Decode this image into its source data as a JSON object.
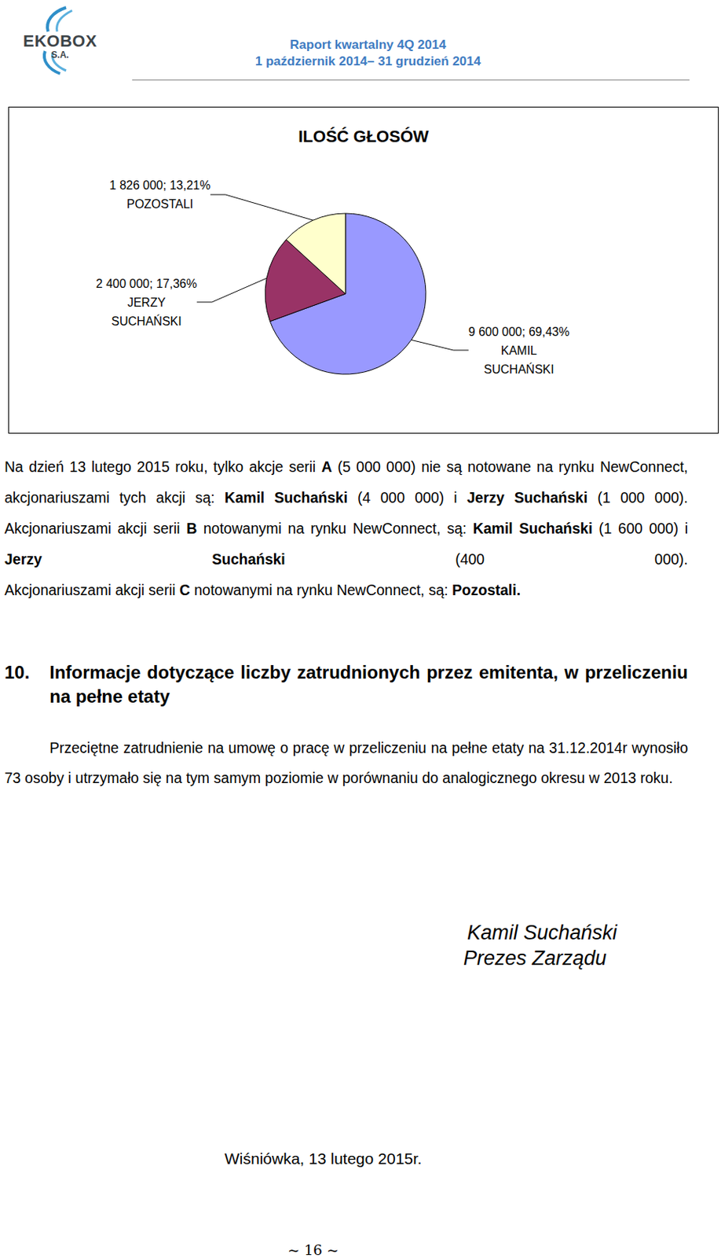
{
  "header": {
    "logo": {
      "name": "EKOBOX",
      "suffix": "S.A."
    },
    "title": "Raport kwartalny 4Q 2014",
    "period": "1 październik 2014– 31 grudzień 2014"
  },
  "chart_data": {
    "type": "pie",
    "title": "ILOŚĆ GŁOSÓW",
    "categories": [
      "KAMIL SUCHAŃSKI",
      "JERZY SUCHAŃSKI",
      "POZOSTALI"
    ],
    "values": [
      9600000,
      2400000,
      1826000
    ],
    "value_labels": [
      "9 600 000; 69,43%",
      "2 400 000; 17,36%",
      "1 826 000; 13,21%"
    ],
    "colors": [
      "#9999ff",
      "#993366",
      "#ffffcc"
    ],
    "data_labels": true
  },
  "body": {
    "paragraphs": [
      [
        {
          "text": "Na dzień 13 lutego 2015 roku, tylko akcje serii "
        },
        {
          "text": "A",
          "bold": true
        },
        {
          "text": " (5 000 000) nie są notowane na rynku NewConnect, akcjonariuszami tych akcji są: "
        },
        {
          "text": "Kamil Suchański",
          "bold": true
        },
        {
          "text": " (4 000 000) i "
        },
        {
          "text": "Jerzy Suchański",
          "bold": true
        },
        {
          "text": " (1 000 000). Akcjonariuszami akcji serii "
        },
        {
          "text": "B",
          "bold": true
        },
        {
          "text": " notowanymi na rynku NewConnect, są: "
        },
        {
          "text": "Kamil Suchański",
          "bold": true
        },
        {
          "text": " (1 600 000) i "
        },
        {
          "text": "Jerzy Suchański",
          "bold": true
        },
        {
          "text": " (400 000)."
        }
      ],
      [
        {
          "text": "Akcjonariuszami akcji serii "
        },
        {
          "text": "C",
          "bold": true
        },
        {
          "text": " notowanymi na rynku NewConnect, są: "
        },
        {
          "text": "Pozostali.",
          "bold": true
        }
      ]
    ]
  },
  "section": {
    "number": "10.",
    "title": "Informacje dotyczące liczby zatrudnionych przez emitenta, w przeliczeniu na pełne etaty",
    "text": "Przeciętne zatrudnienie na umowę o pracę w przeliczeniu na pełne etaty na 31.12.2014r wynosiło 73 osoby i utrzymało się na tym samym poziomie w porównaniu do analogicznego okresu w 2013 roku."
  },
  "signature": {
    "name": "Kamil Suchański",
    "role": "Prezes Zarządu"
  },
  "place_date": "Wiśniówka, 13 lutego  2015r.",
  "page": "~ 16 ~"
}
